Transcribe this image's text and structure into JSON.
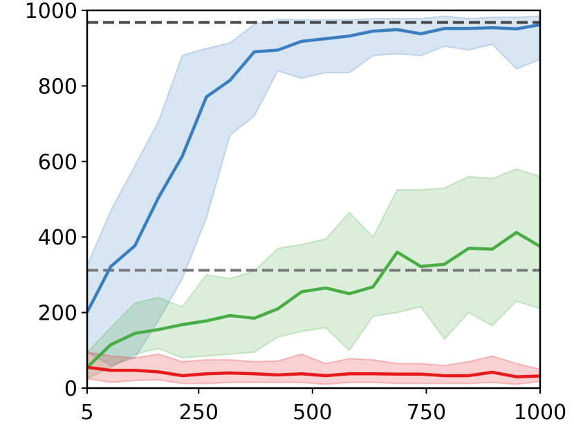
{
  "chart_data": {
    "type": "line",
    "x": [
      5,
      57,
      110,
      162,
      214,
      267,
      319,
      372,
      424,
      476,
      529,
      581,
      633,
      686,
      738,
      790,
      843,
      895,
      948,
      1000
    ],
    "xlim": [
      5,
      1000
    ],
    "xticks": [
      5,
      250,
      500,
      750,
      1000
    ],
    "ylim": [
      0,
      1000
    ],
    "yticks": [
      0,
      200,
      400,
      600,
      800,
      1000
    ],
    "series": [
      {
        "color": "#3a7ebf",
        "values": [
          201,
          322,
          377,
          505,
          614,
          771,
          815,
          890,
          895,
          918,
          925,
          932,
          945,
          949,
          938,
          952,
          952,
          954,
          951,
          962
        ],
        "upper": [
          324,
          470,
          589,
          707,
          881,
          899,
          914,
          963,
          976,
          975,
          975,
          975,
          978,
          978,
          978,
          985,
          978,
          982,
          982,
          985
        ],
        "lower": [
          95,
          60,
          80,
          180,
          290,
          450,
          670,
          720,
          840,
          820,
          835,
          835,
          880,
          885,
          880,
          905,
          895,
          910,
          845,
          870
        ]
      },
      {
        "color": "#4aac44",
        "values": [
          55,
          115,
          145,
          155,
          168,
          178,
          192,
          185,
          210,
          255,
          265,
          250,
          268,
          360,
          322,
          328,
          370,
          368,
          412,
          375
        ],
        "upper": [
          95,
          160,
          225,
          240,
          215,
          300,
          290,
          310,
          370,
          380,
          395,
          465,
          400,
          525,
          525,
          530,
          560,
          555,
          580,
          560
        ],
        "lower": [
          25,
          55,
          90,
          105,
          80,
          85,
          90,
          95,
          135,
          150,
          160,
          100,
          190,
          200,
          215,
          130,
          200,
          165,
          230,
          210
        ]
      },
      {
        "color": "#e41a1c",
        "values": [
          55,
          47,
          47,
          43,
          33,
          38,
          40,
          38,
          35,
          38,
          33,
          38,
          38,
          37,
          37,
          33,
          33,
          42,
          30,
          32
        ],
        "upper": [
          95,
          85,
          80,
          90,
          70,
          75,
          75,
          70,
          72,
          90,
          65,
          78,
          75,
          65,
          65,
          60,
          70,
          85,
          65,
          50
        ],
        "lower": [
          25,
          15,
          20,
          22,
          12,
          12,
          15,
          15,
          15,
          15,
          10,
          15,
          15,
          12,
          12,
          12,
          12,
          15,
          10,
          18
        ]
      }
    ],
    "hlines": [
      {
        "value": 968,
        "color": "#444444"
      },
      {
        "value": 312,
        "color": "#777777"
      }
    ]
  }
}
